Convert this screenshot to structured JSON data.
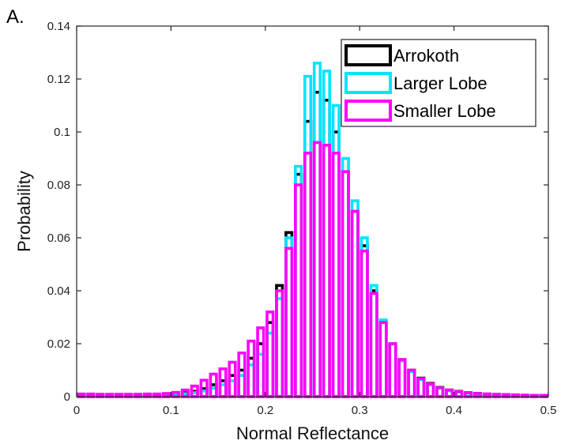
{
  "panel_label": "A.",
  "chart_data": {
    "type": "bar",
    "histogram": true,
    "title": "",
    "xlabel": "Normal Reflectance",
    "ylabel": "Probability",
    "xlim": [
      0,
      0.5
    ],
    "ylim": [
      0,
      0.14
    ],
    "bin_width": 0.01,
    "x_ticks": [
      0,
      0.1,
      0.2,
      0.3,
      0.4,
      0.5
    ],
    "x_tick_labels": [
      "0",
      "0.1",
      "0.2",
      "0.3",
      "0.4",
      "0.5"
    ],
    "y_ticks": [
      0,
      0.02,
      0.04,
      0.06,
      0.08,
      0.1,
      0.12,
      0.14
    ],
    "y_tick_labels": [
      "0",
      "0.02",
      "0.04",
      "0.06",
      "0.08",
      "0.1",
      "0.12",
      "0.14"
    ],
    "grid": false,
    "legend_position": "top-right",
    "series": [
      {
        "name": "Arrokoth",
        "color": "#000000",
        "values": [
          0.0008,
          0.0008,
          0.0008,
          0.0007,
          0.0008,
          0.0007,
          0.0007,
          0.0008,
          0.0008,
          0.0009,
          0.0011,
          0.0014,
          0.002,
          0.003,
          0.0045,
          0.006,
          0.008,
          0.01,
          0.0145,
          0.02,
          0.028,
          0.042,
          0.062,
          0.084,
          0.104,
          0.115,
          0.112,
          0.1,
          0.085,
          0.07,
          0.057,
          0.04,
          0.028,
          0.02,
          0.014,
          0.01,
          0.007,
          0.005,
          0.0035,
          0.0025,
          0.002,
          0.0015,
          0.0012,
          0.001,
          0.0008,
          0.0007,
          0.0006,
          0.0005,
          0.0004,
          0.0004
        ]
      },
      {
        "name": "Larger Lobe",
        "color": "#00e5ff",
        "values": [
          0.0006,
          0.0006,
          0.0006,
          0.0006,
          0.0006,
          0.0006,
          0.0006,
          0.0006,
          0.0007,
          0.0008,
          0.0009,
          0.0011,
          0.0015,
          0.0022,
          0.0032,
          0.0045,
          0.006,
          0.008,
          0.012,
          0.016,
          0.024,
          0.037,
          0.06,
          0.087,
          0.121,
          0.126,
          0.123,
          0.11,
          0.09,
          0.074,
          0.06,
          0.042,
          0.029,
          0.02,
          0.0135,
          0.0095,
          0.0065,
          0.0045,
          0.0032,
          0.0022,
          0.0017,
          0.0013,
          0.001,
          0.0009,
          0.0007,
          0.0006,
          0.0005,
          0.0004,
          0.0004,
          0.0003
        ]
      },
      {
        "name": "Smaller Lobe",
        "color": "#ff00ff",
        "values": [
          0.001,
          0.001,
          0.0009,
          0.0009,
          0.0009,
          0.0009,
          0.0009,
          0.001,
          0.001,
          0.0012,
          0.0016,
          0.0025,
          0.004,
          0.0062,
          0.0085,
          0.0105,
          0.013,
          0.0165,
          0.021,
          0.026,
          0.032,
          0.04,
          0.056,
          0.08,
          0.092,
          0.096,
          0.095,
          0.092,
          0.085,
          0.07,
          0.055,
          0.039,
          0.028,
          0.02,
          0.014,
          0.01,
          0.0068,
          0.0048,
          0.0034,
          0.0025,
          0.0019,
          0.0015,
          0.0012,
          0.001,
          0.0009,
          0.0008,
          0.0007,
          0.0006,
          0.0005,
          0.0005
        ]
      }
    ]
  }
}
